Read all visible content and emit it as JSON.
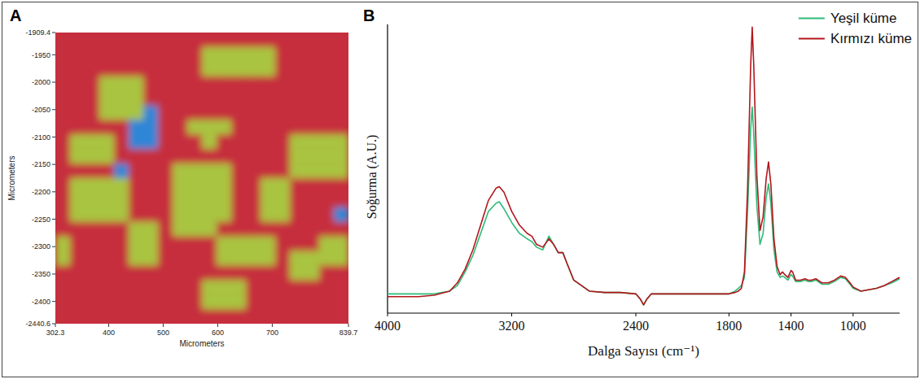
{
  "chart_data": [
    {
      "type": "heatmap",
      "title": "A",
      "xlabel": "Micrometers",
      "ylabel": "Micrometers",
      "xlim": [
        302.3,
        839.7
      ],
      "ylim": [
        -2440.6,
        -1909.4
      ],
      "xticks": [
        302.3,
        400,
        500,
        600,
        700,
        839.7
      ],
      "yticks": [
        -1909.4,
        -1950,
        -2000,
        -2050,
        -2100,
        -2150,
        -2200,
        -2250,
        -2300,
        -2350,
        -2400,
        -2440.6
      ],
      "colors": [
        "#c62f3d",
        "#a9c43f",
        "#2f86d6"
      ],
      "cells": [
        [
          0,
          0,
          0,
          0,
          0,
          0,
          0,
          0,
          0,
          0,
          0,
          0,
          0,
          0,
          0,
          0,
          0,
          0,
          0,
          0
        ],
        [
          0,
          0,
          0,
          0,
          0,
          0,
          0,
          0,
          0,
          0,
          1,
          1,
          1,
          1,
          1,
          0,
          0,
          0,
          0,
          0
        ],
        [
          0,
          0,
          0,
          0,
          0,
          0,
          0,
          0,
          0,
          0,
          1,
          1,
          1,
          1,
          1,
          0,
          0,
          0,
          0,
          0
        ],
        [
          0,
          0,
          0,
          1,
          1,
          1,
          0,
          0,
          0,
          0,
          0,
          0,
          0,
          0,
          0,
          0,
          0,
          0,
          0,
          0
        ],
        [
          0,
          0,
          0,
          1,
          1,
          1,
          0,
          0,
          0,
          0,
          0,
          0,
          0,
          0,
          0,
          0,
          0,
          0,
          0,
          0
        ],
        [
          0,
          0,
          0,
          1,
          1,
          1,
          2,
          0,
          0,
          0,
          0,
          0,
          0,
          0,
          0,
          0,
          0,
          0,
          0,
          0
        ],
        [
          0,
          0,
          0,
          0,
          0,
          2,
          2,
          0,
          0,
          1,
          1,
          1,
          0,
          0,
          0,
          0,
          0,
          0,
          0,
          0
        ],
        [
          0,
          1,
          1,
          1,
          0,
          2,
          2,
          0,
          0,
          0,
          1,
          0,
          0,
          0,
          0,
          0,
          1,
          1,
          1,
          1
        ],
        [
          0,
          1,
          1,
          1,
          0,
          0,
          0,
          0,
          0,
          0,
          0,
          0,
          0,
          0,
          0,
          0,
          1,
          1,
          1,
          1
        ],
        [
          0,
          0,
          0,
          0,
          2,
          0,
          0,
          0,
          1,
          1,
          1,
          1,
          0,
          0,
          0,
          0,
          1,
          1,
          1,
          1
        ],
        [
          0,
          1,
          1,
          1,
          1,
          0,
          0,
          0,
          1,
          1,
          1,
          1,
          0,
          0,
          1,
          1,
          0,
          0,
          0,
          0
        ],
        [
          0,
          1,
          1,
          1,
          1,
          0,
          0,
          0,
          1,
          1,
          1,
          1,
          0,
          0,
          1,
          1,
          0,
          0,
          0,
          0
        ],
        [
          0,
          1,
          1,
          1,
          1,
          0,
          0,
          0,
          1,
          1,
          1,
          1,
          0,
          0,
          1,
          1,
          0,
          0,
          0,
          2
        ],
        [
          0,
          0,
          0,
          0,
          0,
          1,
          1,
          0,
          1,
          1,
          1,
          0,
          0,
          0,
          0,
          0,
          0,
          0,
          0,
          0
        ],
        [
          1,
          0,
          0,
          0,
          0,
          1,
          1,
          0,
          0,
          0,
          0,
          1,
          1,
          1,
          1,
          0,
          0,
          0,
          1,
          1
        ],
        [
          1,
          0,
          0,
          0,
          0,
          1,
          1,
          0,
          0,
          0,
          0,
          1,
          1,
          1,
          1,
          0,
          1,
          1,
          1,
          1
        ],
        [
          0,
          0,
          0,
          0,
          0,
          0,
          0,
          0,
          0,
          0,
          0,
          0,
          0,
          0,
          0,
          0,
          1,
          1,
          0,
          0
        ],
        [
          0,
          0,
          0,
          0,
          0,
          0,
          0,
          0,
          0,
          0,
          1,
          1,
          1,
          0,
          0,
          0,
          0,
          0,
          0,
          0
        ],
        [
          0,
          0,
          0,
          0,
          0,
          0,
          0,
          0,
          0,
          0,
          1,
          1,
          1,
          0,
          0,
          0,
          0,
          0,
          0,
          0
        ],
        [
          0,
          0,
          0,
          0,
          0,
          0,
          0,
          0,
          0,
          0,
          0,
          0,
          0,
          0,
          0,
          0,
          0,
          0,
          0,
          0
        ]
      ]
    },
    {
      "type": "line",
      "title": "B",
      "xlabel": "Dalga Sayısı (cm⁻¹)",
      "ylabel": "Soğurma (A.U.)",
      "xlim": [
        4000,
        700
      ],
      "ylim": [
        -0.05,
        1.0
      ],
      "xticks": [
        4000,
        3200,
        2400,
        1800,
        1400,
        1000
      ],
      "tick_labels": "x",
      "legend": "top-right",
      "x": [
        4000,
        3900,
        3800,
        3700,
        3600,
        3550,
        3500,
        3450,
        3400,
        3350,
        3300,
        3280,
        3250,
        3200,
        3150,
        3100,
        3070,
        3040,
        3000,
        2960,
        2930,
        2900,
        2870,
        2850,
        2800,
        2700,
        2600,
        2500,
        2400,
        2370,
        2350,
        2330,
        2300,
        2200,
        2100,
        2000,
        1900,
        1800,
        1760,
        1740,
        1720,
        1700,
        1680,
        1660,
        1650,
        1640,
        1620,
        1600,
        1580,
        1560,
        1545,
        1530,
        1510,
        1490,
        1470,
        1455,
        1440,
        1420,
        1400,
        1390,
        1370,
        1340,
        1310,
        1290,
        1270,
        1240,
        1200,
        1160,
        1120,
        1080,
        1050,
        1020,
        1000,
        950,
        900,
        850,
        800,
        750,
        700
      ],
      "series": [
        {
          "name": "Yeşil küme",
          "color": "#2dbb78",
          "values": [
            0.02,
            0.02,
            0.02,
            0.02,
            0.03,
            0.05,
            0.1,
            0.16,
            0.24,
            0.32,
            0.35,
            0.355,
            0.33,
            0.28,
            0.24,
            0.22,
            0.21,
            0.19,
            0.18,
            0.23,
            0.2,
            0.17,
            0.17,
            0.14,
            0.07,
            0.03,
            0.025,
            0.025,
            0.02,
            0.0,
            -0.02,
            0.0,
            0.02,
            0.02,
            0.02,
            0.02,
            0.02,
            0.02,
            0.03,
            0.04,
            0.05,
            0.08,
            0.32,
            0.62,
            0.7,
            0.6,
            0.34,
            0.2,
            0.24,
            0.37,
            0.42,
            0.35,
            0.18,
            0.1,
            0.08,
            0.085,
            0.08,
            0.07,
            0.09,
            0.085,
            0.065,
            0.065,
            0.07,
            0.065,
            0.065,
            0.07,
            0.055,
            0.055,
            0.065,
            0.08,
            0.075,
            0.055,
            0.04,
            0.03,
            0.035,
            0.04,
            0.05,
            0.06,
            0.075
          ]
        },
        {
          "name": "Kırmızı küme",
          "color": "#b3161c",
          "values": [
            0.01,
            0.01,
            0.01,
            0.015,
            0.03,
            0.06,
            0.11,
            0.18,
            0.27,
            0.36,
            0.405,
            0.41,
            0.39,
            0.32,
            0.27,
            0.24,
            0.23,
            0.2,
            0.19,
            0.22,
            0.2,
            0.17,
            0.17,
            0.14,
            0.07,
            0.03,
            0.025,
            0.025,
            0.02,
            0.0,
            -0.02,
            0.0,
            0.02,
            0.02,
            0.02,
            0.02,
            0.02,
            0.02,
            0.025,
            0.03,
            0.04,
            0.1,
            0.4,
            0.85,
            0.99,
            0.85,
            0.45,
            0.25,
            0.3,
            0.44,
            0.5,
            0.42,
            0.22,
            0.12,
            0.09,
            0.1,
            0.09,
            0.08,
            0.105,
            0.1,
            0.07,
            0.07,
            0.075,
            0.07,
            0.07,
            0.075,
            0.06,
            0.06,
            0.07,
            0.085,
            0.08,
            0.06,
            0.045,
            0.03,
            0.035,
            0.04,
            0.05,
            0.065,
            0.08
          ]
        }
      ]
    }
  ]
}
